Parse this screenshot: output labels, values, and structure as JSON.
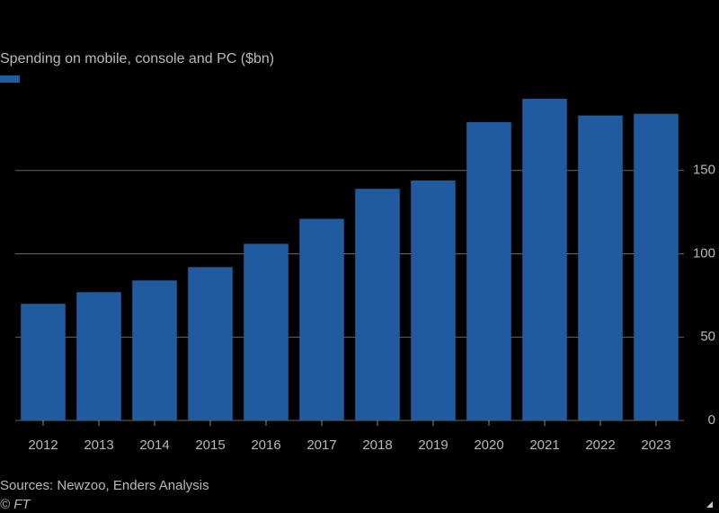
{
  "chart_data": {
    "type": "bar",
    "title": "Spending on mobile, console and PC ($bn)",
    "categories": [
      "2012",
      "2013",
      "2014",
      "2015",
      "2016",
      "2017",
      "2018",
      "2019",
      "2020",
      "2021",
      "2022",
      "2023"
    ],
    "values": [
      70,
      77,
      84,
      92,
      106,
      121,
      139,
      144,
      179,
      193,
      183,
      184
    ],
    "color": "#1f5b9e",
    "ylim": [
      0,
      200
    ],
    "yticks": [
      0,
      50,
      100,
      150
    ],
    "grid": true,
    "source": "Sources: Newzoo, Enders Analysis",
    "credit": "© FT"
  }
}
